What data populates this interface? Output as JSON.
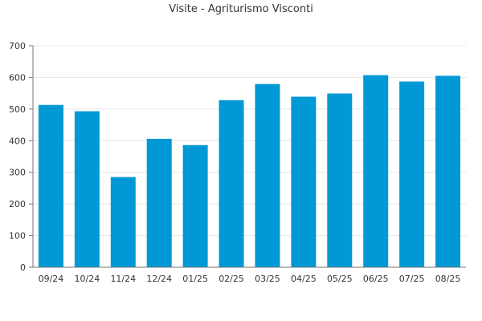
{
  "chart_data": {
    "type": "bar",
    "title": "Visite - Agriturismo Visconti",
    "xlabel": "",
    "ylabel": "",
    "categories": [
      "09/24",
      "10/24",
      "11/24",
      "12/24",
      "01/25",
      "02/25",
      "03/25",
      "04/25",
      "05/25",
      "06/25",
      "07/25",
      "08/25"
    ],
    "values": [
      513,
      493,
      285,
      406,
      386,
      528,
      579,
      539,
      549,
      607,
      587,
      605
    ],
    "ylim": [
      0,
      700
    ],
    "yticks": [
      0,
      100,
      200,
      300,
      400,
      500,
      600,
      700
    ],
    "grid": true,
    "legend": "none",
    "bar_color": "#0099d6"
  }
}
